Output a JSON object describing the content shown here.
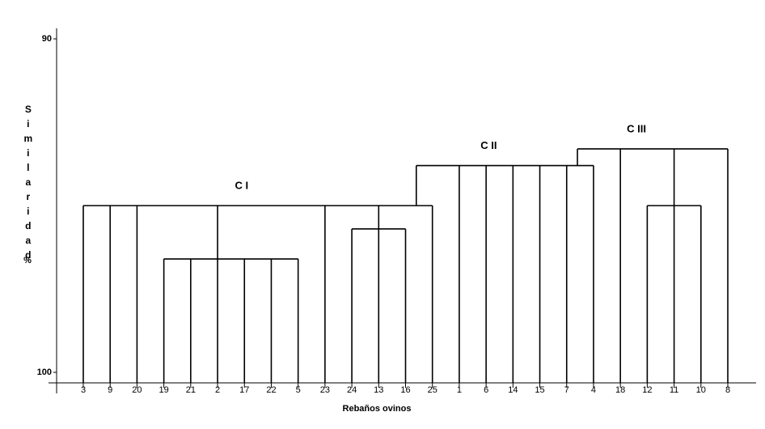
{
  "chart_data": {
    "type": "dendrogram",
    "y_label": "Similaridad",
    "y_unit": "%",
    "x_label": "Rebaños ovinos",
    "ylim": [
      90,
      100
    ],
    "yticks": [
      90,
      100
    ],
    "tree": {
      "label": "C III",
      "height": 93.3,
      "children": [
        {
          "label": "C II",
          "height": 93.8,
          "children": [
            {
              "label": "C I",
              "height": 95.0,
              "children": [
                "3",
                "9",
                "20",
                {
                  "height": 96.6,
                  "children": [
                    "19",
                    "21",
                    "2",
                    "17",
                    "22",
                    "5"
                  ]
                },
                "23",
                {
                  "height": 95.7,
                  "children": [
                    "24",
                    "13",
                    "16"
                  ]
                },
                "25"
              ]
            },
            "1",
            "6",
            "14",
            "15",
            "7",
            "4"
          ]
        },
        "18",
        {
          "height": 95.0,
          "children": [
            "12",
            "11",
            "10"
          ]
        },
        "8"
      ]
    }
  }
}
